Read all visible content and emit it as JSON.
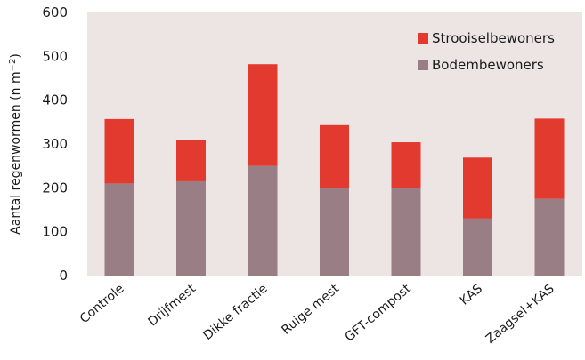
{
  "chart_data": {
    "type": "bar",
    "stacked": true,
    "categories": [
      "Controle",
      "Drijfmest",
      "Dikke fractie",
      "Ruige mest",
      "GFT-compost",
      "KAS",
      "Zaagsel+KAS"
    ],
    "series": [
      {
        "name": "Bodembewoners",
        "values": [
          210,
          215,
          250,
          200,
          200,
          130,
          175
        ],
        "color": "#9a7e86"
      },
      {
        "name": "Strooiselbewoners",
        "values": [
          147,
          95,
          232,
          143,
          104,
          139,
          183
        ],
        "color": "#e23a2f"
      }
    ],
    "ylabel_main": "Aantal regenwormen (n m",
    "ylabel_sup": "−2",
    "ylabel_tail": ")",
    "ylim": [
      0,
      600
    ],
    "yticks": [
      "0",
      "100",
      "200",
      "300",
      "400",
      "500",
      "600"
    ],
    "grid": false,
    "plot_background": "#ede4e4",
    "legend_position": "top-right",
    "legend_order": [
      "Strooiselbewoners",
      "Bodembewoners"
    ]
  }
}
